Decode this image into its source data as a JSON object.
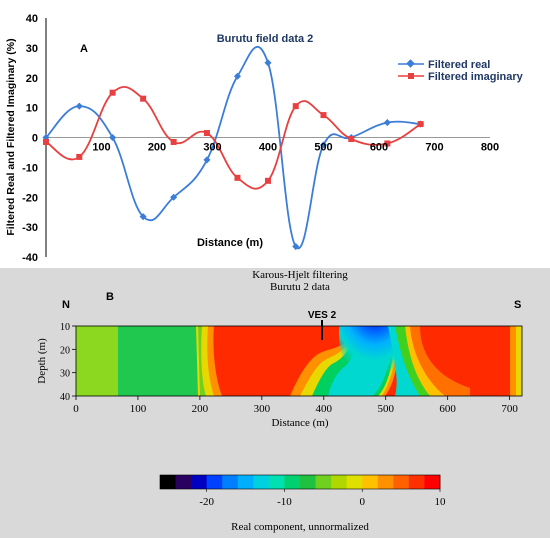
{
  "chart_data": [
    {
      "type": "line",
      "panel_label": "A",
      "title": "Burutu field data 2",
      "xlabel": "Distance (m)",
      "ylabel": "Filtered Real and Filtered Imaginary (%)",
      "xlim": [
        0,
        800
      ],
      "ylim": [
        -40,
        40
      ],
      "x_ticks": [
        "100",
        "200",
        "300",
        "400",
        "500",
        "600",
        "700",
        "800"
      ],
      "y_ticks": [
        "40",
        "30",
        "20",
        "10",
        "0",
        "-10",
        "-20",
        "-30",
        "-40"
      ],
      "legend_position": "top-right",
      "series": [
        {
          "name": "Filtered real",
          "color": "#3b7dd8",
          "marker": "diamond",
          "x": [
            0,
            60,
            120,
            175,
            230,
            290,
            345,
            400,
            450,
            500,
            550,
            615,
            675
          ],
          "y": [
            0,
            10.5,
            0,
            -26.5,
            -20,
            -7.5,
            20.5,
            25,
            -36.5,
            -2.5,
            0,
            5,
            4.5
          ]
        },
        {
          "name": "Filtered imaginary",
          "color": "#e84040",
          "marker": "square",
          "x": [
            0,
            60,
            120,
            175,
            230,
            290,
            345,
            400,
            450,
            500,
            550,
            615,
            675
          ],
          "y": [
            -1.5,
            -6.5,
            15,
            13,
            -1.5,
            1.5,
            -13.5,
            -14.5,
            10.5,
            7.5,
            -0.5,
            -2,
            4.5
          ]
        }
      ]
    },
    {
      "type": "heatmap",
      "panel_label": "B",
      "title": "Karous-Hjelt filtering",
      "subtitle": "Burutu 2 data",
      "xlabel": "Distance (m)",
      "ylabel": "Depth (m)",
      "xlim": [
        0,
        720
      ],
      "ylim": [
        40,
        10
      ],
      "x_ticks": [
        "0",
        "100",
        "200",
        "300",
        "400",
        "500",
        "600",
        "700"
      ],
      "y_ticks": [
        "10",
        "20",
        "30",
        "40"
      ],
      "left_marker": "N",
      "right_marker": "S",
      "annotation": "VES 2",
      "annotation_x": 390,
      "colorbar": {
        "label": "Real component, unnormalized",
        "min": -26,
        "max": 10,
        "ticks": [
          "-20",
          "-10",
          "0",
          "10"
        ],
        "colors": [
          "#000000",
          "#2a0060",
          "#0000c0",
          "#0040ff",
          "#0080ff",
          "#00b0ff",
          "#00d0e0",
          "#00e0b0",
          "#00d070",
          "#20c040",
          "#70d020",
          "#b0d800",
          "#e0e000",
          "#ffc000",
          "#ff9000",
          "#ff6000",
          "#ff3000",
          "#ff0000"
        ]
      }
    }
  ]
}
